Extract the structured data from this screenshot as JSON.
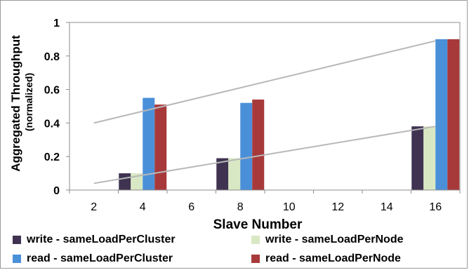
{
  "chart_data": {
    "type": "bar",
    "title": "",
    "xlabel": "Slave Number",
    "ylabel": "Aggregated Throughput",
    "ylabel_sub": "(normalized)",
    "categories": [
      "2",
      "4",
      "6",
      "8",
      "10",
      "12",
      "14",
      "16"
    ],
    "ylim": [
      0,
      1
    ],
    "yticks": [
      "0",
      "0.2",
      "0.4",
      "0.6",
      "0.8",
      "1"
    ],
    "ytick_values": [
      0,
      0.2,
      0.4,
      0.6,
      0.8,
      1
    ],
    "grid": false,
    "legend_position": "bottom",
    "series": [
      {
        "name": "write - sameLoadPerCluster",
        "color": "#3f3351",
        "values": [
          null,
          0.1,
          null,
          0.19,
          null,
          null,
          null,
          0.38
        ]
      },
      {
        "name": "write - sameLoadPerNode",
        "color": "#d9e8c4",
        "values": [
          null,
          0.1,
          null,
          0.19,
          null,
          null,
          null,
          0.38
        ]
      },
      {
        "name": "read - sameLoadPerCluster",
        "color": "#4a90d9",
        "values": [
          null,
          0.55,
          null,
          0.52,
          null,
          null,
          null,
          0.9
        ]
      },
      {
        "name": "read - sameLoadPerNode",
        "color": "#a8393a",
        "values": [
          null,
          0.51,
          null,
          0.54,
          null,
          null,
          null,
          0.9
        ]
      }
    ],
    "trendlines": [
      {
        "name": "read-trend",
        "color": "#b8b8b8",
        "from": {
          "x": "2",
          "y": 0.4
        },
        "to": {
          "x": "16",
          "y": 0.89
        }
      },
      {
        "name": "write-trend",
        "color": "#b8b8b8",
        "from": {
          "x": "2",
          "y": 0.04
        },
        "to": {
          "x": "16",
          "y": 0.38
        }
      }
    ]
  }
}
